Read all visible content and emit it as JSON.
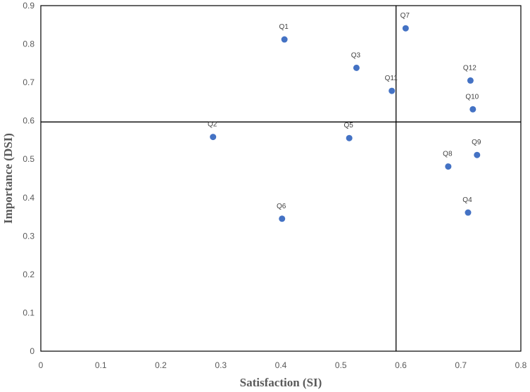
{
  "chart_data": {
    "type": "scatter",
    "title": "",
    "xlabel": "Satisfaction (SI)",
    "ylabel": "Importance (DSI)",
    "xlim": [
      0,
      0.8
    ],
    "ylim": [
      0,
      0.9
    ],
    "xticks": [
      "0",
      "0.1",
      "0.2",
      "0.3",
      "0.4",
      "0.5",
      "0.6",
      "0.7",
      "0.8"
    ],
    "yticks": [
      "0",
      "0.1",
      "0.2",
      "0.3",
      "0.4",
      "0.5",
      "0.6",
      "0.7",
      "0.8",
      "0.9"
    ],
    "reference_lines": {
      "x": 0.592,
      "y": 0.597
    },
    "marker_color": "#4472C4",
    "grid": false,
    "points": [
      {
        "label": "Q1",
        "x": 0.406,
        "y": 0.812
      },
      {
        "label": "Q2",
        "x": 0.287,
        "y": 0.558
      },
      {
        "label": "Q3",
        "x": 0.526,
        "y": 0.738
      },
      {
        "label": "Q4",
        "x": 0.712,
        "y": 0.361
      },
      {
        "label": "Q5",
        "x": 0.514,
        "y": 0.555
      },
      {
        "label": "Q6",
        "x": 0.402,
        "y": 0.345
      },
      {
        "label": "Q7",
        "x": 0.608,
        "y": 0.841
      },
      {
        "label": "Q8",
        "x": 0.679,
        "y": 0.481
      },
      {
        "label": "Q9",
        "x": 0.727,
        "y": 0.511
      },
      {
        "label": "Q10",
        "x": 0.72,
        "y": 0.63
      },
      {
        "label": "Q11",
        "x": 0.585,
        "y": 0.678
      },
      {
        "label": "Q12",
        "x": 0.716,
        "y": 0.705
      }
    ]
  }
}
